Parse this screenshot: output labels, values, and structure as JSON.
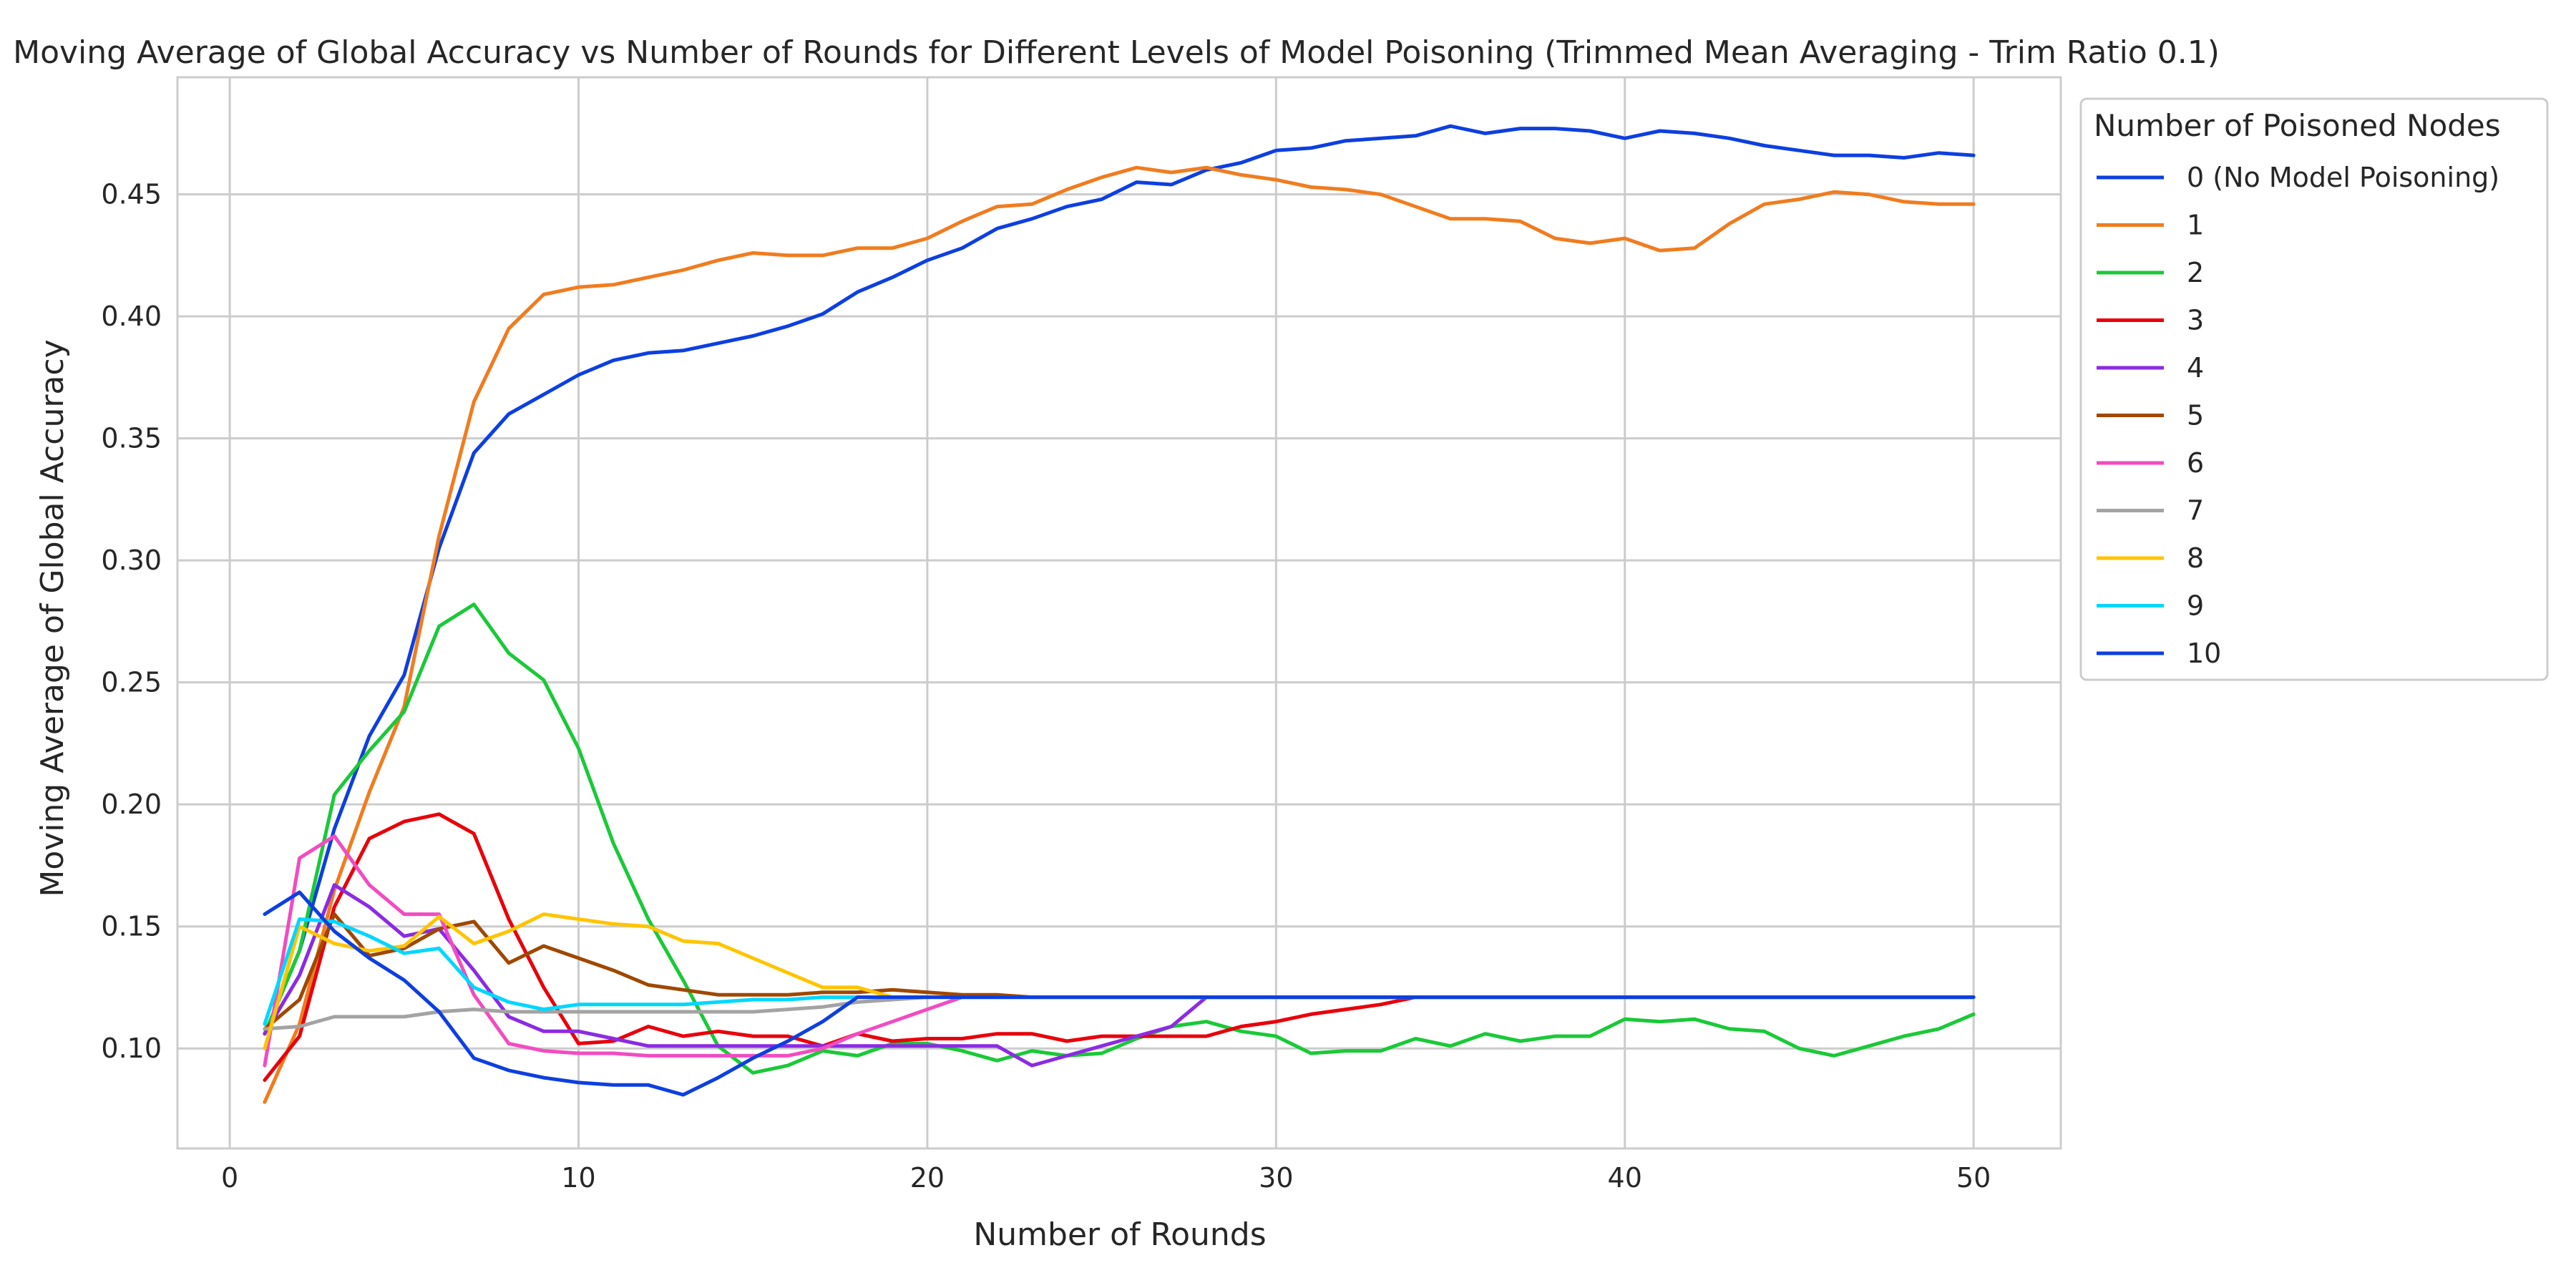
{
  "chart_data": {
    "type": "line",
    "title": "Moving Average of Global Accuracy vs Number of Rounds for Different Levels of Model Poisoning (Trimmed Mean Averaging - Trim Ratio 0.1)",
    "xlabel": "Number of Rounds",
    "ylabel": "Moving Average of Global Accuracy",
    "xlim": [
      -1.5,
      52.5
    ],
    "ylim": [
      0.059,
      0.498
    ],
    "xticks": [
      0,
      10,
      20,
      30,
      40,
      50
    ],
    "yticks": [
      0.1,
      0.15,
      0.2,
      0.25,
      0.3,
      0.35,
      0.4,
      0.45
    ],
    "xtick_labels": [
      "0",
      "10",
      "20",
      "30",
      "40",
      "50"
    ],
    "ytick_labels": [
      "0.10",
      "0.15",
      "0.20",
      "0.25",
      "0.30",
      "0.35",
      "0.40",
      "0.45"
    ],
    "grid": true,
    "legend": {
      "title": "Number of Poisoned Nodes",
      "placement": "outside-right-top"
    },
    "x": [
      1,
      2,
      3,
      4,
      5,
      6,
      7,
      8,
      9,
      10,
      11,
      12,
      13,
      14,
      15,
      16,
      17,
      18,
      19,
      20,
      21,
      22,
      23,
      24,
      25,
      26,
      27,
      28,
      29,
      30,
      31,
      32,
      33,
      34,
      35,
      36,
      37,
      38,
      39,
      40,
      41,
      42,
      43,
      44,
      45,
      46,
      47,
      48,
      49,
      50
    ],
    "series": [
      {
        "name": "0 (No Model Poisoning)",
        "color": "#0d3fe0",
        "values": [
          0.106,
          0.14,
          0.19,
          0.228,
          0.253,
          0.305,
          0.344,
          0.36,
          0.368,
          0.376,
          0.382,
          0.385,
          0.386,
          0.389,
          0.392,
          0.396,
          0.401,
          0.41,
          0.416,
          0.423,
          0.428,
          0.436,
          0.44,
          0.445,
          0.448,
          0.455,
          0.454,
          0.46,
          0.463,
          0.468,
          0.469,
          0.472,
          0.473,
          0.474,
          0.478,
          0.475,
          0.477,
          0.477,
          0.476,
          0.473,
          0.476,
          0.475,
          0.473,
          0.47,
          0.468,
          0.466,
          0.466,
          0.465,
          0.467,
          0.466
        ]
      },
      {
        "name": "1",
        "color": "#f07c1f",
        "values": [
          0.078,
          0.11,
          0.165,
          0.205,
          0.24,
          0.31,
          0.365,
          0.395,
          0.409,
          0.412,
          0.413,
          0.416,
          0.419,
          0.423,
          0.426,
          0.425,
          0.425,
          0.428,
          0.428,
          0.432,
          0.439,
          0.445,
          0.446,
          0.452,
          0.457,
          0.461,
          0.459,
          0.461,
          0.458,
          0.456,
          0.453,
          0.452,
          0.45,
          0.445,
          0.44,
          0.44,
          0.439,
          0.432,
          0.43,
          0.432,
          0.427,
          0.428,
          0.438,
          0.446,
          0.448,
          0.451,
          0.45,
          0.447,
          0.446,
          0.446
        ]
      },
      {
        "name": "2",
        "color": "#1ac938",
        "values": [
          0.106,
          0.14,
          0.204,
          0.222,
          0.238,
          0.273,
          0.282,
          0.262,
          0.251,
          0.223,
          0.184,
          0.153,
          0.128,
          0.101,
          0.09,
          0.093,
          0.099,
          0.097,
          0.102,
          0.102,
          0.099,
          0.095,
          0.099,
          0.097,
          0.098,
          0.104,
          0.109,
          0.111,
          0.107,
          0.105,
          0.098,
          0.099,
          0.099,
          0.104,
          0.101,
          0.106,
          0.103,
          0.105,
          0.105,
          0.112,
          0.111,
          0.112,
          0.108,
          0.107,
          0.1,
          0.097,
          0.101,
          0.105,
          0.108,
          0.114
        ]
      },
      {
        "name": "3",
        "color": "#e8000b",
        "values": [
          0.087,
          0.105,
          0.158,
          0.186,
          0.193,
          0.196,
          0.188,
          0.153,
          0.125,
          0.102,
          0.103,
          0.109,
          0.105,
          0.107,
          0.105,
          0.105,
          0.101,
          0.106,
          0.103,
          0.104,
          0.104,
          0.106,
          0.106,
          0.103,
          0.105,
          0.105,
          0.105,
          0.105,
          0.109,
          0.111,
          0.114,
          0.116,
          0.118,
          0.121,
          0.121,
          0.121,
          0.121,
          0.121,
          0.121,
          0.121,
          0.121,
          0.121,
          0.121,
          0.121,
          0.121,
          0.121,
          0.121,
          0.121,
          0.121,
          0.121
        ]
      },
      {
        "name": "4",
        "color": "#8b2be2",
        "values": [
          0.106,
          0.13,
          0.167,
          0.158,
          0.146,
          0.149,
          0.132,
          0.113,
          0.107,
          0.107,
          0.104,
          0.101,
          0.101,
          0.101,
          0.101,
          0.101,
          0.101,
          0.101,
          0.101,
          0.101,
          0.101,
          0.101,
          0.093,
          0.097,
          0.101,
          0.105,
          0.109,
          0.121,
          0.121,
          0.121,
          0.121,
          0.121,
          0.121,
          0.121,
          0.121,
          0.121,
          0.121,
          0.121,
          0.121,
          0.121,
          0.121,
          0.121,
          0.121,
          0.121,
          0.121,
          0.121,
          0.121,
          0.121,
          0.121,
          0.121
        ]
      },
      {
        "name": "5",
        "color": "#9f4800",
        "values": [
          0.108,
          0.12,
          0.155,
          0.138,
          0.141,
          0.149,
          0.152,
          0.135,
          0.142,
          0.137,
          0.132,
          0.126,
          0.124,
          0.122,
          0.122,
          0.122,
          0.123,
          0.123,
          0.124,
          0.123,
          0.122,
          0.122,
          0.121,
          0.121,
          0.121,
          0.121,
          0.121,
          0.121,
          0.121,
          0.121,
          0.121,
          0.121,
          0.121,
          0.121,
          0.121,
          0.121,
          0.121,
          0.121,
          0.121,
          0.121,
          0.121,
          0.121,
          0.121,
          0.121,
          0.121,
          0.121,
          0.121,
          0.121,
          0.121,
          0.121
        ]
      },
      {
        "name": "6",
        "color": "#f14cc1",
        "values": [
          0.093,
          0.178,
          0.187,
          0.167,
          0.155,
          0.155,
          0.122,
          0.102,
          0.099,
          0.098,
          0.098,
          0.097,
          0.097,
          0.097,
          0.097,
          0.097,
          0.1,
          0.106,
          0.111,
          0.116,
          0.121,
          0.121,
          0.121,
          0.121,
          0.121,
          0.121,
          0.121,
          0.121,
          0.121,
          0.121,
          0.121,
          0.121,
          0.121,
          0.121,
          0.121,
          0.121,
          0.121,
          0.121,
          0.121,
          0.121,
          0.121,
          0.121,
          0.121,
          0.121,
          0.121,
          0.121,
          0.121,
          0.121,
          0.121,
          0.121
        ]
      },
      {
        "name": "7",
        "color": "#a3a3a3",
        "values": [
          0.108,
          0.109,
          0.113,
          0.113,
          0.113,
          0.115,
          0.116,
          0.115,
          0.115,
          0.115,
          0.115,
          0.115,
          0.115,
          0.115,
          0.115,
          0.116,
          0.117,
          0.119,
          0.12,
          0.121,
          0.121,
          0.121,
          0.121,
          0.121,
          0.121,
          0.121,
          0.121,
          0.121,
          0.121,
          0.121,
          0.121,
          0.121,
          0.121,
          0.121,
          0.121,
          0.121,
          0.121,
          0.121,
          0.121,
          0.121,
          0.121,
          0.121,
          0.121,
          0.121,
          0.121,
          0.121,
          0.121,
          0.121,
          0.121,
          0.121
        ]
      },
      {
        "name": "8",
        "color": "#ffc400",
        "values": [
          0.1,
          0.15,
          0.143,
          0.14,
          0.142,
          0.154,
          0.143,
          0.148,
          0.155,
          0.153,
          0.151,
          0.15,
          0.144,
          0.143,
          0.137,
          0.131,
          0.125,
          0.125,
          0.121,
          0.121,
          0.121,
          0.121,
          0.121,
          0.121,
          0.121,
          0.121,
          0.121,
          0.121,
          0.121,
          0.121,
          0.121,
          0.121,
          0.121,
          0.121,
          0.121,
          0.121,
          0.121,
          0.121,
          0.121,
          0.121,
          0.121,
          0.121,
          0.121,
          0.121,
          0.121,
          0.121,
          0.121,
          0.121,
          0.121,
          0.121
        ]
      },
      {
        "name": "9",
        "color": "#00d7ff",
        "values": [
          0.11,
          0.153,
          0.152,
          0.146,
          0.139,
          0.141,
          0.125,
          0.119,
          0.116,
          0.118,
          0.118,
          0.118,
          0.118,
          0.119,
          0.12,
          0.12,
          0.121,
          0.121,
          0.121,
          0.121,
          0.121,
          0.121,
          0.121,
          0.121,
          0.121,
          0.121,
          0.121,
          0.121,
          0.121,
          0.121,
          0.121,
          0.121,
          0.121,
          0.121,
          0.121,
          0.121,
          0.121,
          0.121,
          0.121,
          0.121,
          0.121,
          0.121,
          0.121,
          0.121,
          0.121,
          0.121,
          0.121,
          0.121,
          0.121,
          0.121
        ]
      },
      {
        "name": "10",
        "color": "#0d3fe0",
        "values": [
          0.155,
          0.164,
          0.148,
          0.137,
          0.128,
          0.115,
          0.096,
          0.091,
          0.088,
          0.086,
          0.085,
          0.085,
          0.081,
          0.088,
          0.096,
          0.103,
          0.111,
          0.121,
          0.121,
          0.121,
          0.121,
          0.121,
          0.121,
          0.121,
          0.121,
          0.121,
          0.121,
          0.121,
          0.121,
          0.121,
          0.121,
          0.121,
          0.121,
          0.121,
          0.121,
          0.121,
          0.121,
          0.121,
          0.121,
          0.121,
          0.121,
          0.121,
          0.121,
          0.121,
          0.121,
          0.121,
          0.121,
          0.121,
          0.121,
          0.121
        ]
      }
    ]
  }
}
